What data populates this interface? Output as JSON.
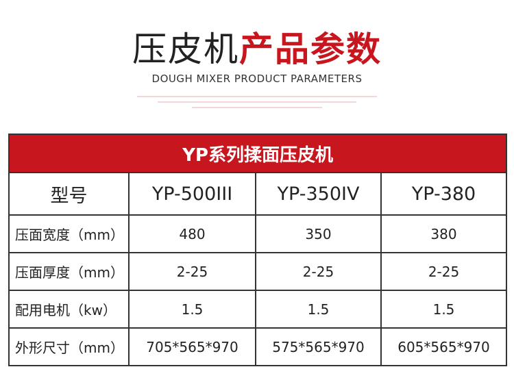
{
  "header": {
    "title_black": "压皮机",
    "title_red": "产品参数",
    "subtitle": "DOUGH MIXER PRODUCT PARAMETERS"
  },
  "table": {
    "title": "YP系列揉面压皮机",
    "columns": [
      "型号",
      "YP-500III",
      "YP-350IV",
      "YP-380"
    ],
    "rows": [
      [
        "压面宽度（mm）",
        "480",
        "350",
        "380"
      ],
      [
        "压面厚度（mm）",
        "2-25",
        "2-25",
        "2-25"
      ],
      [
        "配用电机（kw）",
        "1.5",
        "1.5",
        "1.5"
      ],
      [
        "外形尺寸（mm）",
        "705*565*970",
        "575*565*970",
        "605*565*970"
      ]
    ]
  }
}
